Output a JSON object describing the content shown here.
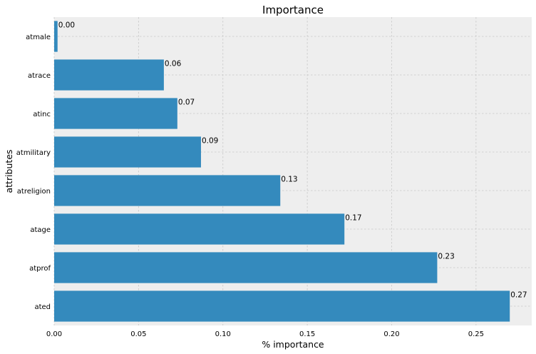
{
  "chart_data": {
    "type": "bar",
    "orientation": "horizontal",
    "title": "Importance",
    "xlabel": "% importance",
    "ylabel": "attributes",
    "categories": [
      "atmale",
      "atrace",
      "atinc",
      "atmilitary",
      "atreligion",
      "atage",
      "atprof",
      "ated"
    ],
    "values": [
      0.002,
      0.065,
      0.073,
      0.087,
      0.134,
      0.172,
      0.227,
      0.27
    ],
    "value_labels": [
      "0.00",
      "0.06",
      "0.07",
      "0.09",
      "0.13",
      "0.17",
      "0.23",
      "0.27"
    ],
    "xlim": [
      0,
      0.283
    ],
    "xticks": [
      0,
      0.05,
      0.1,
      0.15,
      0.2,
      0.25
    ],
    "xtick_labels": [
      "0.00",
      "0.05",
      "0.10",
      "0.15",
      "0.20",
      "0.25"
    ],
    "grid": true,
    "colors": {
      "bar": "#348abd",
      "plot_background": "#eeeeee",
      "grid": "#c8c8c8"
    }
  }
}
